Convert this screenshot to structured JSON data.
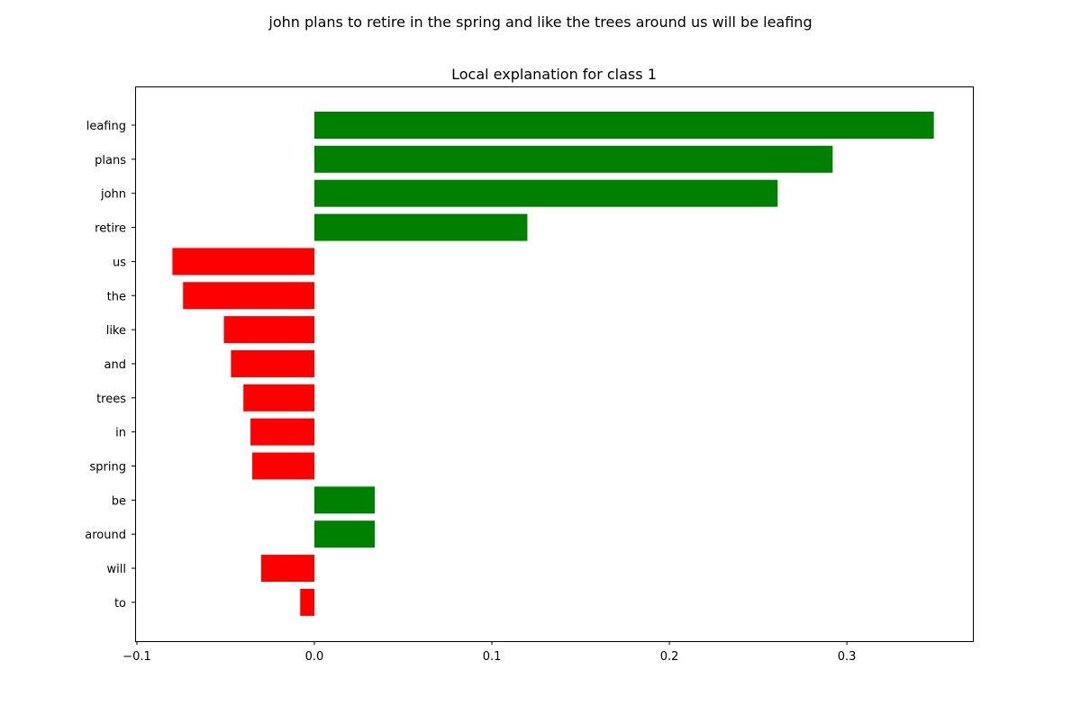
{
  "figure": {
    "suptitle": "john plans to retire in the spring and like the trees around us will be leafing"
  },
  "chart_data": {
    "type": "bar",
    "orientation": "horizontal",
    "title": "Local explanation for class 1",
    "xlabel": "",
    "ylabel": "",
    "categories": [
      "leafing",
      "plans",
      "john",
      "retire",
      "us",
      "the",
      "like",
      "and",
      "trees",
      "in",
      "spring",
      "be",
      "around",
      "will",
      "to"
    ],
    "values": [
      0.349,
      0.292,
      0.261,
      0.12,
      -0.08,
      -0.074,
      -0.051,
      -0.047,
      -0.04,
      -0.036,
      -0.035,
      0.034,
      0.034,
      -0.03,
      -0.008
    ],
    "xlim": [
      -0.101,
      0.371
    ],
    "xticks": [
      -0.1,
      0.0,
      0.1,
      0.2,
      0.3
    ],
    "xtick_labels": [
      "−0.1",
      "0.0",
      "0.1",
      "0.2",
      "0.3"
    ],
    "grid": false,
    "legend": "none",
    "colors": {
      "positive": "#008000",
      "negative": "#ff0000",
      "axes": "#000000",
      "background": "#ffffff"
    }
  }
}
